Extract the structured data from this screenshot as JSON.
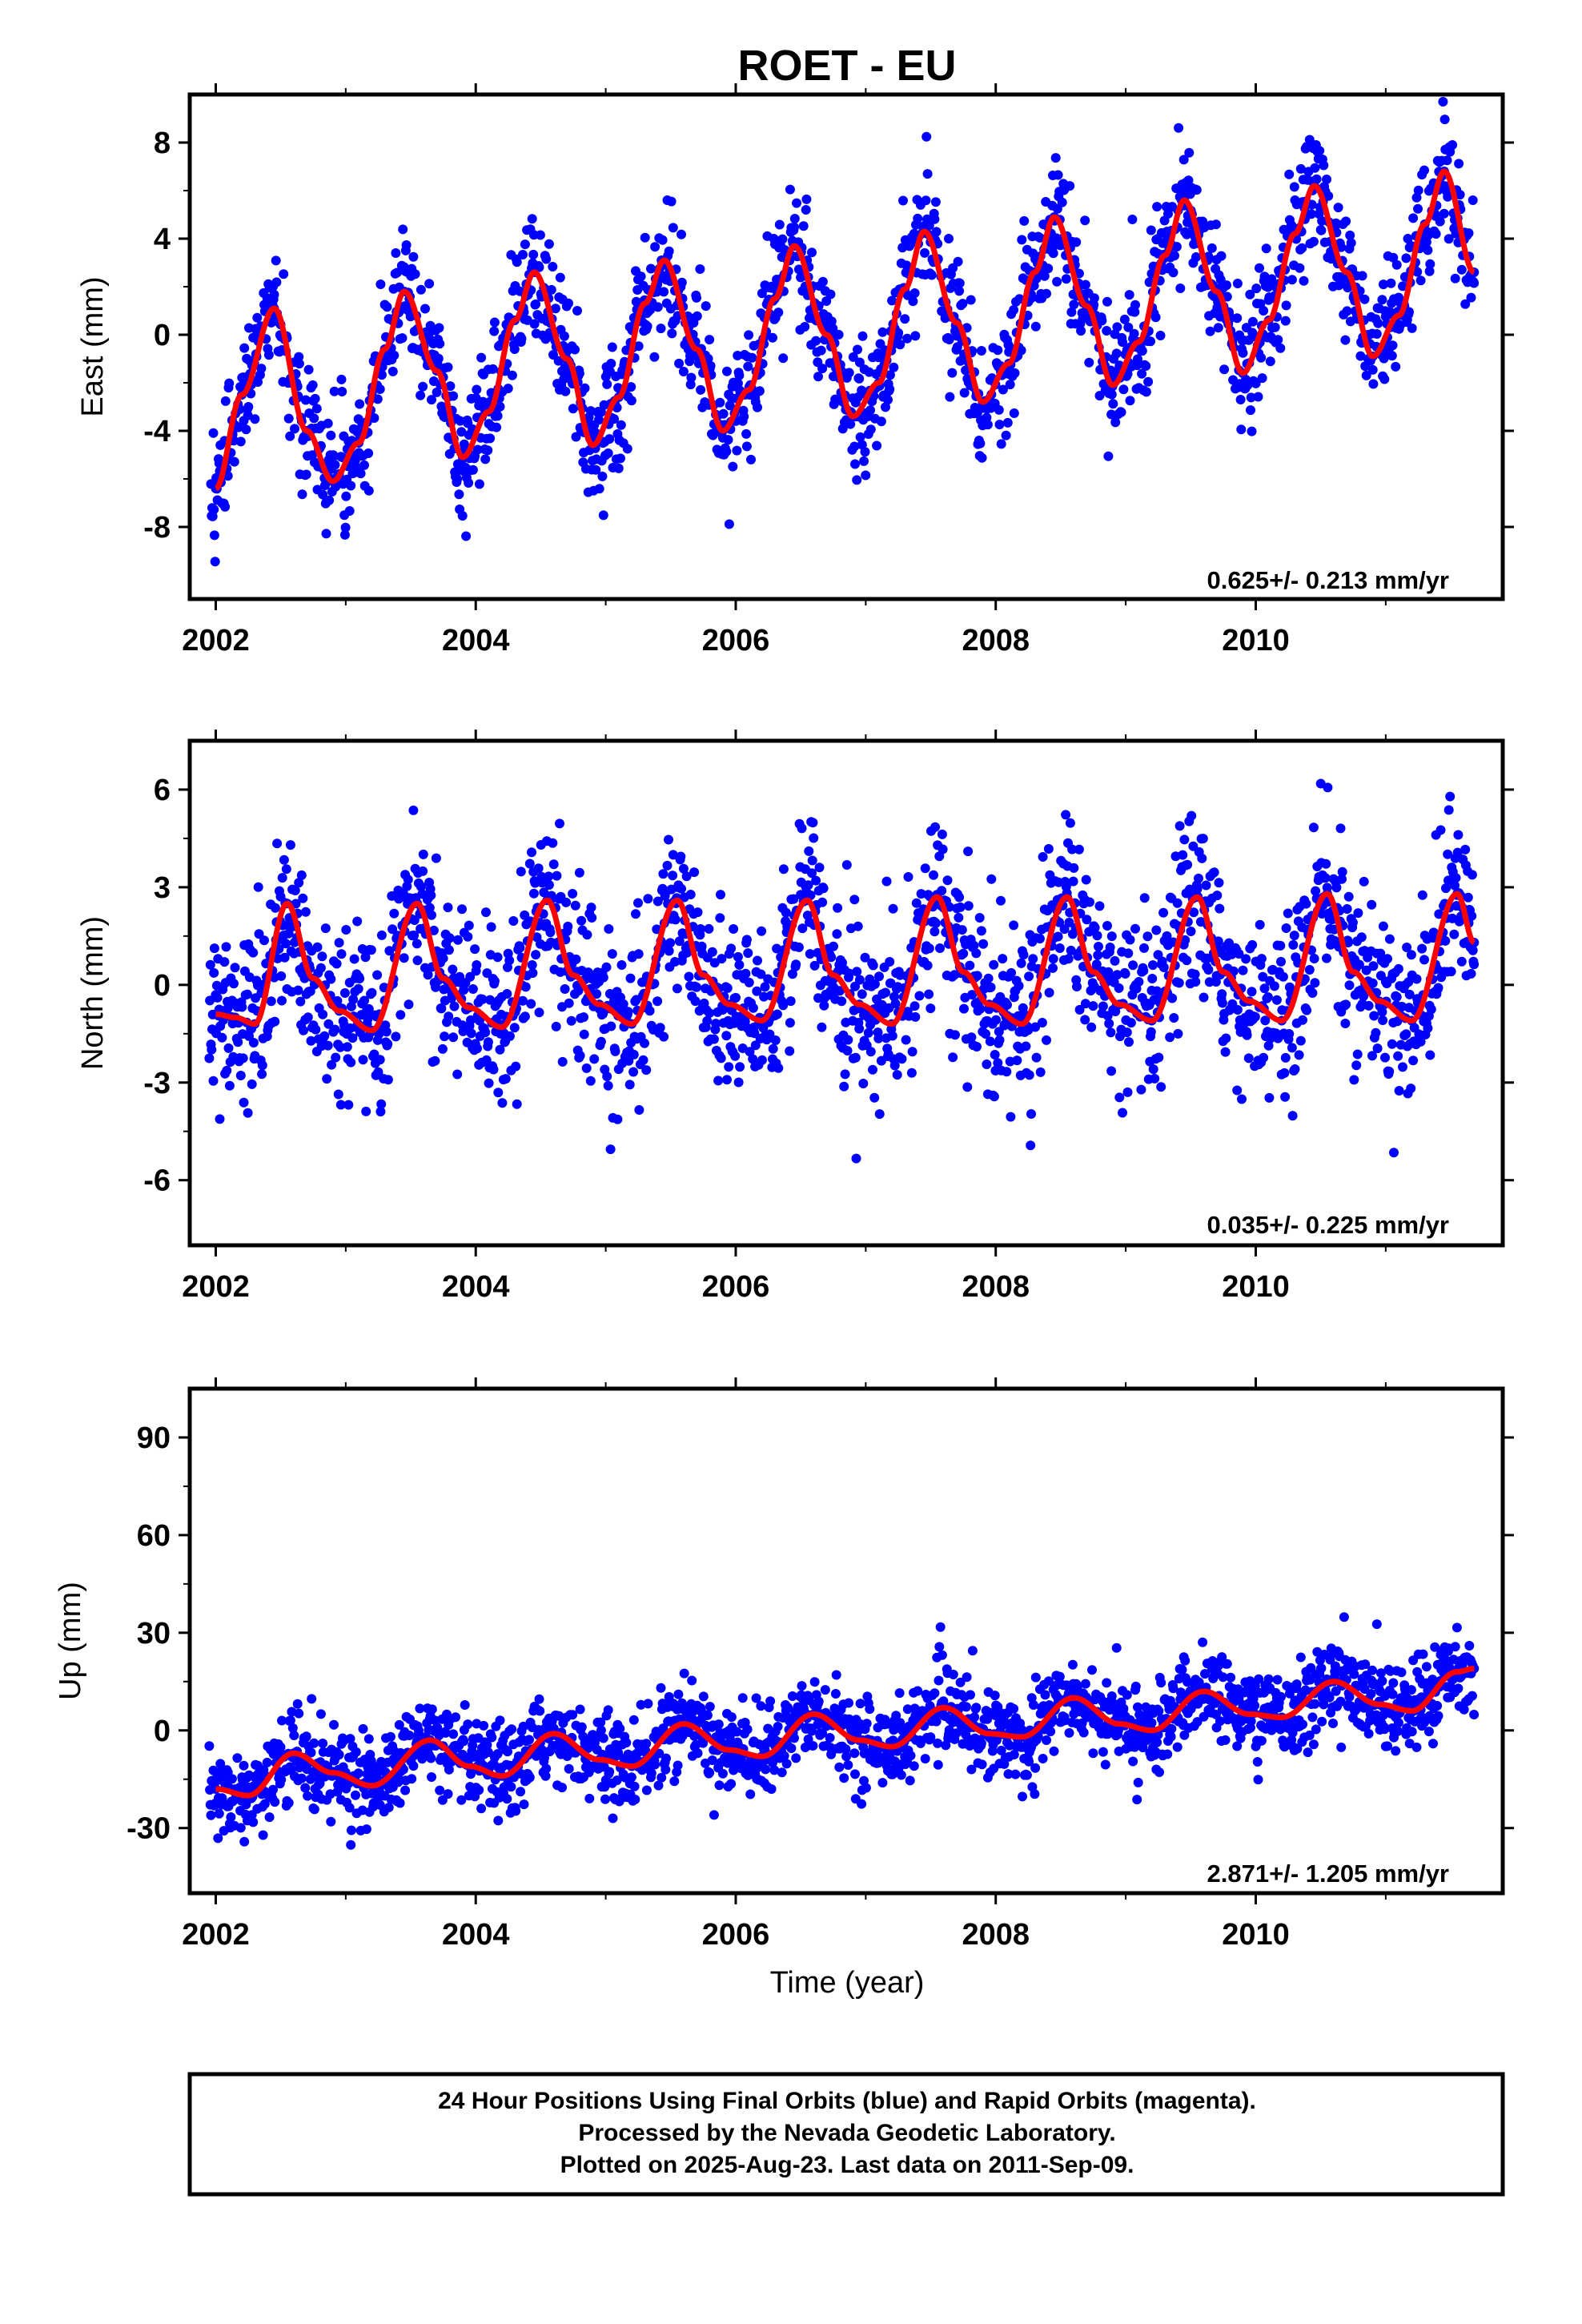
{
  "title": "ROET - EU",
  "colors": {
    "points": "#0000ff",
    "fit": "#ff0000",
    "frame": "#000000"
  },
  "footer": {
    "line1": "24 Hour Positions Using Final Orbits (blue) and Rapid Orbits (magenta).",
    "line2": "Processed by the Nevada Geodetic Laboratory.",
    "line3": "Plotted on 2025-Aug-23. Last data on 2011-Sep-09."
  },
  "chart_data": [
    {
      "type": "scatter",
      "component": "east",
      "title": "ROET - EU",
      "ylabel": "East (mm)",
      "xlabel": "",
      "xlim": [
        2001.8,
        2011.9
      ],
      "ylim": [
        -11,
        10
      ],
      "xticks": [
        2002,
        2004,
        2006,
        2008,
        2010
      ],
      "yticks": [
        -8,
        -4,
        0,
        4,
        8
      ],
      "rate_text": "0.625+/- 0.213 mm/yr",
      "series": [
        {
          "role": "daily positions (blue dots)",
          "x": [
            2002.0,
            2002.2,
            2002.45,
            2002.7,
            2002.9,
            2003.1,
            2003.3,
            2003.45,
            2003.7,
            2003.9,
            2004.1,
            2004.3,
            2004.45,
            2004.7,
            2004.9,
            2005.1,
            2005.3,
            2005.45,
            2005.7,
            2005.9,
            2006.1,
            2006.3,
            2006.45,
            2006.7,
            2006.9,
            2007.1,
            2007.3,
            2007.45,
            2007.7,
            2007.9,
            2008.1,
            2008.3,
            2008.45,
            2008.7,
            2008.9,
            2009.1,
            2009.3,
            2009.45,
            2009.7,
            2009.9,
            2010.1,
            2010.3,
            2010.45,
            2010.7,
            2010.9,
            2011.1,
            2011.3,
            2011.45,
            2011.68
          ],
          "y": [
            -6.4,
            -2.5,
            1.1,
            -4.0,
            -6.1,
            -4.5,
            -0.6,
            1.8,
            -1.5,
            -5.1,
            -3.2,
            0.6,
            2.6,
            -1.0,
            -4.6,
            -2.6,
            1.3,
            3.1,
            -0.6,
            -4.0,
            -2.3,
            1.5,
            3.7,
            0.0,
            -3.4,
            -2.0,
            1.9,
            4.3,
            0.5,
            -2.8,
            -1.2,
            2.6,
            4.9,
            1.2,
            -2.1,
            -0.3,
            3.3,
            5.6,
            1.8,
            -1.6,
            0.6,
            4.2,
            6.2,
            2.6,
            -0.9,
            0.8,
            4.6,
            6.8,
            2.6
          ]
        },
        {
          "role": "model fit (red line)",
          "x": [
            2002.0,
            2002.2,
            2002.45,
            2002.7,
            2002.9,
            2003.1,
            2003.3,
            2003.45,
            2003.7,
            2003.9,
            2004.1,
            2004.3,
            2004.45,
            2004.7,
            2004.9,
            2005.1,
            2005.3,
            2005.45,
            2005.7,
            2005.9,
            2006.1,
            2006.3,
            2006.45,
            2006.7,
            2006.9,
            2007.1,
            2007.3,
            2007.45,
            2007.7,
            2007.9,
            2008.1,
            2008.3,
            2008.45,
            2008.7,
            2008.9,
            2009.1,
            2009.3,
            2009.45,
            2009.7,
            2009.9,
            2010.1,
            2010.3,
            2010.45,
            2010.7,
            2010.9,
            2011.1,
            2011.3,
            2011.45,
            2011.68
          ],
          "y": [
            -6.4,
            -2.5,
            1.1,
            -4.0,
            -6.1,
            -4.5,
            -0.6,
            1.8,
            -1.5,
            -5.1,
            -3.2,
            0.6,
            2.6,
            -1.0,
            -4.6,
            -2.6,
            1.3,
            3.1,
            -0.6,
            -4.0,
            -2.3,
            1.5,
            3.7,
            0.0,
            -3.4,
            -2.0,
            1.9,
            4.3,
            0.5,
            -2.8,
            -1.2,
            2.6,
            4.9,
            1.2,
            -2.1,
            -0.3,
            3.3,
            5.6,
            1.8,
            -1.6,
            0.6,
            4.2,
            6.2,
            2.6,
            -0.9,
            0.8,
            4.6,
            6.8,
            2.6
          ]
        }
      ]
    },
    {
      "type": "scatter",
      "component": "north",
      "ylabel": "North (mm)",
      "xlabel": "",
      "xlim": [
        2001.8,
        2011.9
      ],
      "ylim": [
        -8,
        7.5
      ],
      "xticks": [
        2002,
        2004,
        2006,
        2008,
        2010
      ],
      "yticks": [
        -6,
        -3,
        0,
        3,
        6
      ],
      "rate_text": "0.035+/- 0.225 mm/yr",
      "series": [
        {
          "role": "daily positions (blue dots)",
          "x": [
            2002.0,
            2002.15,
            2002.3,
            2002.55,
            2002.75,
            2002.95,
            2003.2,
            2003.55,
            2003.75,
            2003.95,
            2004.2,
            2004.55,
            2004.75,
            2004.95,
            2005.2,
            2005.55,
            2005.75,
            2005.95,
            2006.2,
            2006.55,
            2006.75,
            2006.95,
            2007.2,
            2007.55,
            2007.75,
            2007.95,
            2008.2,
            2008.55,
            2008.75,
            2008.95,
            2009.2,
            2009.55,
            2009.75,
            2009.95,
            2010.2,
            2010.55,
            2010.75,
            2010.95,
            2011.2,
            2011.55,
            2011.68
          ],
          "y": [
            -0.9,
            -1.0,
            -1.2,
            2.5,
            0.2,
            -0.8,
            -1.4,
            2.5,
            0.2,
            -0.7,
            -1.3,
            2.6,
            0.3,
            -0.6,
            -1.2,
            2.6,
            0.3,
            -0.6,
            -1.1,
            2.6,
            0.3,
            -0.6,
            -1.2,
            2.7,
            0.4,
            -0.6,
            -1.2,
            2.7,
            0.4,
            -0.6,
            -1.1,
            2.7,
            0.4,
            -0.5,
            -1.1,
            2.8,
            0.4,
            -0.5,
            -1.1,
            2.8,
            1.3
          ]
        },
        {
          "role": "model fit (red line)",
          "x": [
            2002.0,
            2002.15,
            2002.3,
            2002.55,
            2002.75,
            2002.95,
            2003.2,
            2003.55,
            2003.75,
            2003.95,
            2004.2,
            2004.55,
            2004.75,
            2004.95,
            2005.2,
            2005.55,
            2005.75,
            2005.95,
            2006.2,
            2006.55,
            2006.75,
            2006.95,
            2007.2,
            2007.55,
            2007.75,
            2007.95,
            2008.2,
            2008.55,
            2008.75,
            2008.95,
            2009.2,
            2009.55,
            2009.75,
            2009.95,
            2010.2,
            2010.55,
            2010.75,
            2010.95,
            2011.2,
            2011.55,
            2011.68
          ],
          "y": [
            -0.9,
            -1.0,
            -1.2,
            2.5,
            0.2,
            -0.8,
            -1.4,
            2.5,
            0.2,
            -0.7,
            -1.3,
            2.6,
            0.3,
            -0.6,
            -1.2,
            2.6,
            0.3,
            -0.6,
            -1.1,
            2.6,
            0.3,
            -0.6,
            -1.2,
            2.7,
            0.4,
            -0.6,
            -1.2,
            2.7,
            0.4,
            -0.6,
            -1.1,
            2.7,
            0.4,
            -0.5,
            -1.1,
            2.8,
            0.4,
            -0.5,
            -1.1,
            2.8,
            1.3
          ]
        }
      ]
    },
    {
      "type": "scatter",
      "component": "up",
      "ylabel": "Up (mm)",
      "xlabel": "Time (year)",
      "xlim": [
        2001.8,
        2011.9
      ],
      "ylim": [
        -50,
        105
      ],
      "xticks": [
        2002,
        2004,
        2006,
        2008,
        2010
      ],
      "yticks": [
        -30,
        0,
        30,
        60,
        90
      ],
      "rate_text": "2.871+/- 1.205 mm/yr",
      "series": [
        {
          "role": "daily positions (blue dots)",
          "x": [
            2002.0,
            2002.25,
            2002.6,
            2002.9,
            2003.2,
            2003.65,
            2003.95,
            2004.2,
            2004.6,
            2004.95,
            2005.2,
            2005.6,
            2005.95,
            2006.2,
            2006.6,
            2006.95,
            2007.2,
            2007.6,
            2007.95,
            2008.2,
            2008.6,
            2008.95,
            2009.2,
            2009.6,
            2009.95,
            2010.2,
            2010.6,
            2010.95,
            2011.2,
            2011.55,
            2011.68
          ],
          "y": [
            -18,
            -20,
            -7,
            -13,
            -17,
            -3,
            -11,
            -14,
            -1,
            -9,
            -11,
            2,
            -6,
            -8,
            5,
            -3,
            -5,
            7,
            -1,
            -2,
            10,
            2,
            0,
            12,
            5,
            4,
            15,
            8,
            6,
            18,
            19
          ]
        },
        {
          "role": "model fit (red line)",
          "x": [
            2002.0,
            2002.25,
            2002.6,
            2002.9,
            2003.2,
            2003.65,
            2003.95,
            2004.2,
            2004.6,
            2004.95,
            2005.2,
            2005.6,
            2005.95,
            2006.2,
            2006.6,
            2006.95,
            2007.2,
            2007.6,
            2007.95,
            2008.2,
            2008.6,
            2008.95,
            2009.2,
            2009.6,
            2009.95,
            2010.2,
            2010.6,
            2010.95,
            2011.2,
            2011.55,
            2011.68
          ],
          "y": [
            -18,
            -20,
            -7,
            -13,
            -17,
            -3,
            -11,
            -14,
            -1,
            -9,
            -11,
            2,
            -6,
            -8,
            5,
            -3,
            -5,
            7,
            -1,
            -2,
            10,
            2,
            0,
            12,
            5,
            4,
            15,
            8,
            6,
            18,
            19
          ]
        }
      ]
    }
  ]
}
